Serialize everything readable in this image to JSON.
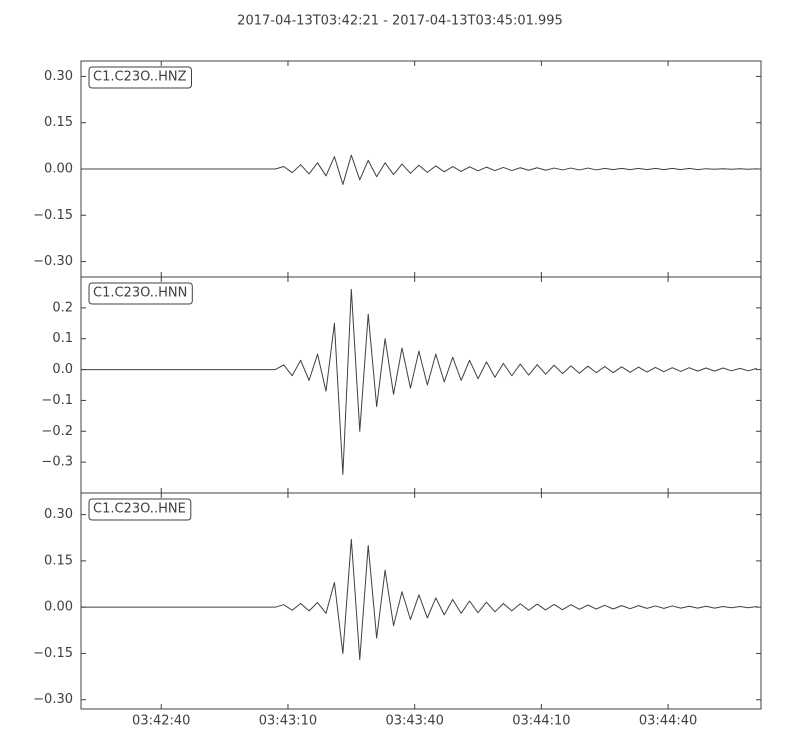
{
  "title": "2017-04-13T03:42:21  -  2017-04-13T03:45:01.995",
  "chart_data": [
    {
      "type": "line",
      "x": [
        "03:42:21",
        "03:43:07",
        "03:43:09",
        "03:43:11",
        "03:43:13",
        "03:43:15",
        "03:43:17",
        "03:43:19",
        "03:43:21",
        "03:43:23",
        "03:43:25",
        "03:43:27",
        "03:43:29",
        "03:43:31",
        "03:43:33",
        "03:43:35",
        "03:43:37",
        "03:43:39",
        "03:43:41",
        "03:43:43",
        "03:43:45",
        "03:43:47",
        "03:43:49",
        "03:43:51",
        "03:43:53",
        "03:43:55",
        "03:43:57",
        "03:43:59",
        "03:44:01",
        "03:44:03",
        "03:44:05",
        "03:44:07",
        "03:44:09",
        "03:44:11",
        "03:44:13",
        "03:44:15",
        "03:44:17",
        "03:44:19",
        "03:44:21",
        "03:44:23",
        "03:44:25",
        "03:44:27",
        "03:44:29",
        "03:44:31",
        "03:44:33",
        "03:44:35",
        "03:44:37",
        "03:44:39",
        "03:44:41",
        "03:44:43",
        "03:44:45",
        "03:44:47",
        "03:44:49",
        "03:44:51",
        "03:44:53",
        "03:44:55",
        "03:44:57",
        "03:44:59",
        "03:45:01"
      ],
      "series": [
        {
          "name": "C1.C23O..HNZ",
          "color": "#404040",
          "values": [
            0,
            0,
            0.008,
            -0.012,
            0.014,
            -0.016,
            0.02,
            -0.022,
            0.04,
            -0.05,
            0.045,
            -0.035,
            0.028,
            -0.025,
            0.02,
            -0.018,
            0.016,
            -0.014,
            0.012,
            -0.011,
            0.01,
            -0.009,
            0.008,
            -0.008,
            0.007,
            -0.006,
            0.006,
            -0.005,
            0.005,
            -0.005,
            0.004,
            -0.004,
            0.004,
            -0.004,
            0.003,
            -0.003,
            0.003,
            -0.003,
            0.003,
            -0.003,
            0.002,
            -0.002,
            0.002,
            -0.002,
            0.002,
            -0.002,
            0.002,
            -0.002,
            0.002,
            -0.002,
            0.002,
            -0.002,
            0.001,
            -0.001,
            0.001,
            -0.001,
            0.001,
            -0.001,
            0.001
          ]
        }
      ],
      "xlim": [
        "03:42:21",
        "03:45:01.995"
      ],
      "xticks": [
        "03:42:40",
        "03:43:10",
        "03:43:40",
        "03:44:10",
        "03:44:40"
      ],
      "ylim": [
        -0.35,
        0.35
      ],
      "yticks": [
        {
          "value": 0.3,
          "label": "0.30"
        },
        {
          "value": 0.15,
          "label": "0.15"
        },
        {
          "value": 0,
          "label": "0.00"
        },
        {
          "value": -0.15,
          "label": "−0.15"
        },
        {
          "value": -0.3,
          "label": "−0.30"
        }
      ]
    },
    {
      "type": "line",
      "x": [
        "03:42:21",
        "03:43:07",
        "03:43:09",
        "03:43:11",
        "03:43:13",
        "03:43:15",
        "03:43:17",
        "03:43:19",
        "03:43:21",
        "03:43:23",
        "03:43:25",
        "03:43:27",
        "03:43:29",
        "03:43:31",
        "03:43:33",
        "03:43:35",
        "03:43:37",
        "03:43:39",
        "03:43:41",
        "03:43:43",
        "03:43:45",
        "03:43:47",
        "03:43:49",
        "03:43:51",
        "03:43:53",
        "03:43:55",
        "03:43:57",
        "03:43:59",
        "03:44:01",
        "03:44:03",
        "03:44:05",
        "03:44:07",
        "03:44:09",
        "03:44:11",
        "03:44:13",
        "03:44:15",
        "03:44:17",
        "03:44:19",
        "03:44:21",
        "03:44:23",
        "03:44:25",
        "03:44:27",
        "03:44:29",
        "03:44:31",
        "03:44:33",
        "03:44:35",
        "03:44:37",
        "03:44:39",
        "03:44:41",
        "03:44:43",
        "03:44:45",
        "03:44:47",
        "03:44:49",
        "03:44:51",
        "03:44:53",
        "03:44:55",
        "03:44:57",
        "03:44:59",
        "03:45:01"
      ],
      "series": [
        {
          "name": "C1.C23O..HNN",
          "color": "#404040",
          "values": [
            0,
            0,
            0.015,
            -0.02,
            0.03,
            -0.035,
            0.05,
            -0.07,
            0.15,
            -0.34,
            0.26,
            -0.2,
            0.18,
            -0.12,
            0.1,
            -0.08,
            0.07,
            -0.06,
            0.06,
            -0.05,
            0.05,
            -0.04,
            0.04,
            -0.035,
            0.03,
            -0.03,
            0.025,
            -0.025,
            0.02,
            -0.02,
            0.018,
            -0.018,
            0.016,
            -0.015,
            0.014,
            -0.013,
            0.012,
            -0.012,
            0.011,
            -0.01,
            0.01,
            -0.01,
            0.009,
            -0.009,
            0.008,
            -0.008,
            0.007,
            -0.007,
            0.006,
            -0.006,
            0.006,
            -0.005,
            0.005,
            -0.005,
            0.005,
            -0.004,
            0.004,
            -0.004,
            0.004
          ]
        }
      ],
      "xlim": [
        "03:42:21",
        "03:45:01.995"
      ],
      "xticks": [
        "03:42:40",
        "03:43:10",
        "03:43:40",
        "03:44:10",
        "03:44:40"
      ],
      "ylim": [
        -0.4,
        0.3
      ],
      "yticks": [
        0.2,
        0.1,
        {
          "value": 0,
          "label": "0.0"
        },
        {
          "value": -0.1,
          "label": "−0.1"
        },
        {
          "value": -0.2,
          "label": "−0.2"
        },
        {
          "value": -0.3,
          "label": "−0.3"
        }
      ]
    },
    {
      "type": "line",
      "x": [
        "03:42:21",
        "03:43:07",
        "03:43:09",
        "03:43:11",
        "03:43:13",
        "03:43:15",
        "03:43:17",
        "03:43:19",
        "03:43:21",
        "03:43:23",
        "03:43:25",
        "03:43:27",
        "03:43:29",
        "03:43:31",
        "03:43:33",
        "03:43:35",
        "03:43:37",
        "03:43:39",
        "03:43:41",
        "03:43:43",
        "03:43:45",
        "03:43:47",
        "03:43:49",
        "03:43:51",
        "03:43:53",
        "03:43:55",
        "03:43:57",
        "03:43:59",
        "03:44:01",
        "03:44:03",
        "03:44:05",
        "03:44:07",
        "03:44:09",
        "03:44:11",
        "03:44:13",
        "03:44:15",
        "03:44:17",
        "03:44:19",
        "03:44:21",
        "03:44:23",
        "03:44:25",
        "03:44:27",
        "03:44:29",
        "03:44:31",
        "03:44:33",
        "03:44:35",
        "03:44:37",
        "03:44:39",
        "03:44:41",
        "03:44:43",
        "03:44:45",
        "03:44:47",
        "03:44:49",
        "03:44:51",
        "03:44:53",
        "03:44:55",
        "03:44:57",
        "03:44:59",
        "03:45:01"
      ],
      "series": [
        {
          "name": "C1.C23O..HNE",
          "color": "#404040",
          "values": [
            0,
            0,
            0.008,
            -0.01,
            0.012,
            -0.012,
            0.015,
            -0.02,
            0.08,
            -0.15,
            0.22,
            -0.17,
            0.2,
            -0.1,
            0.12,
            -0.06,
            0.05,
            -0.04,
            0.04,
            -0.035,
            0.03,
            -0.025,
            0.025,
            -0.02,
            0.02,
            -0.018,
            0.016,
            -0.015,
            0.012,
            -0.012,
            0.011,
            -0.01,
            0.01,
            -0.009,
            0.009,
            -0.008,
            0.008,
            -0.007,
            0.007,
            -0.006,
            0.006,
            -0.006,
            0.005,
            -0.005,
            0.005,
            -0.004,
            0.004,
            -0.004,
            0.004,
            -0.003,
            0.003,
            -0.003,
            0.003,
            -0.003,
            0.002,
            -0.002,
            0.002,
            -0.002,
            0.002
          ]
        }
      ],
      "xlim": [
        "03:42:21",
        "03:45:01.995"
      ],
      "xticks": [
        "03:42:40",
        "03:43:10",
        "03:43:40",
        "03:44:10",
        "03:44:40"
      ],
      "ylim": [
        -0.33,
        0.37
      ],
      "yticks": [
        {
          "value": 0.3,
          "label": "0.30"
        },
        {
          "value": 0.15,
          "label": "0.15"
        },
        {
          "value": 0,
          "label": "0.00"
        },
        {
          "value": -0.15,
          "label": "−0.15"
        },
        {
          "value": -0.3,
          "label": "−0.30"
        }
      ]
    }
  ]
}
